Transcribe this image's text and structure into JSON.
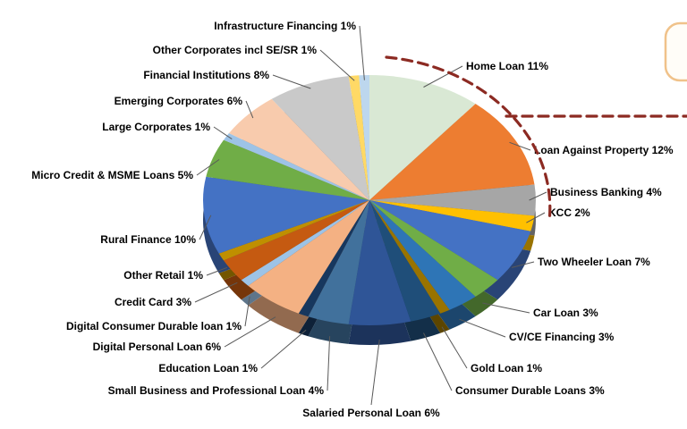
{
  "chart_data": {
    "type": "pie",
    "style": "3d-pie",
    "title": "",
    "unit": "%",
    "legend_position": "none",
    "label_format": "name value%",
    "slices": [
      {
        "label": "Home Loan",
        "value": 11,
        "color": "#D9E8D4"
      },
      {
        "label": "Loan Against Property",
        "value": 12,
        "color": "#ED7D31"
      },
      {
        "label": "Business Banking",
        "value": 4,
        "color": "#A6A6A6"
      },
      {
        "label": "KCC",
        "value": 2,
        "color": "#FFC000"
      },
      {
        "label": "Two Wheeler Loan",
        "value": 7,
        "color": "#4472C4"
      },
      {
        "label": "Car Loan",
        "value": 3,
        "color": "#70AD47"
      },
      {
        "label": "CV/CE Financing",
        "value": 3,
        "color": "#2E75B6"
      },
      {
        "label": "Gold Loan",
        "value": 1,
        "color": "#997300"
      },
      {
        "label": "Consumer Durable Loans",
        "value": 3,
        "color": "#1F4E79"
      },
      {
        "label": "Salaried Personal Loan",
        "value": 6,
        "color": "#2F5597"
      },
      {
        "label": "Small Business and Professional Loan",
        "value": 4,
        "color": "#41719C"
      },
      {
        "label": "Education Loan",
        "value": 1,
        "color": "#17375E"
      },
      {
        "label": "Digital Personal Loan",
        "value": 6,
        "color": "#F4B183"
      },
      {
        "label": "Digital Consumer Durable loan",
        "value": 1,
        "color": "#9DC3E6"
      },
      {
        "label": "Credit Card",
        "value": 3,
        "color": "#C55A11"
      },
      {
        "label": "Other Retail",
        "value": 1,
        "color": "#BF8F00"
      },
      {
        "label": "Rural Finance",
        "value": 10,
        "color": "#4472C4"
      },
      {
        "label": "Micro Credit & MSME Loans",
        "value": 5,
        "color": "#70AD47"
      },
      {
        "label": "Large Corporates",
        "value": 1,
        "color": "#9DC3E6"
      },
      {
        "label": "Emerging Corporates",
        "value": 6,
        "color": "#F8CBAD"
      },
      {
        "label": "Financial Institutions",
        "value": 8,
        "color": "#C9C9C9"
      },
      {
        "label": "Other Corporates incl SE/SR",
        "value": 1,
        "color": "#FFD966"
      },
      {
        "label": "Infrastructure Financing",
        "value": 1,
        "color": "#BDD7EE"
      }
    ]
  },
  "annotations": {
    "dashed_arc_color": "#8C2A22",
    "callout_border_color": "#F0C28A"
  }
}
